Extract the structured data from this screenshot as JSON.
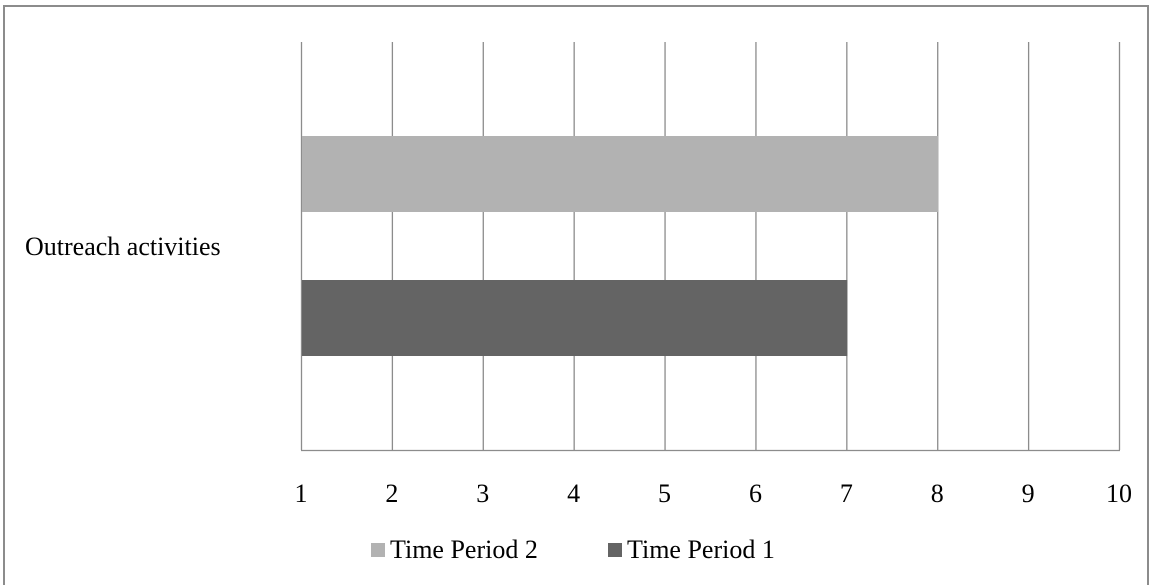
{
  "chart_data": {
    "type": "bar",
    "orientation": "horizontal",
    "categories": [
      "Outreach activities"
    ],
    "series": [
      {
        "name": "Time Period 2",
        "values": [
          8
        ],
        "color": "#b2b2b2"
      },
      {
        "name": "Time Period 1",
        "values": [
          7
        ],
        "color": "#646464"
      }
    ],
    "xlim": [
      1,
      10
    ],
    "x_ticks": [
      "1",
      "2",
      "3",
      "4",
      "5",
      "6",
      "7",
      "8",
      "9",
      "10"
    ],
    "title": "",
    "xlabel": "",
    "ylabel": "",
    "grid": "vertical",
    "legend_position": "bottom",
    "gridline_color": "#8c8c8c"
  }
}
